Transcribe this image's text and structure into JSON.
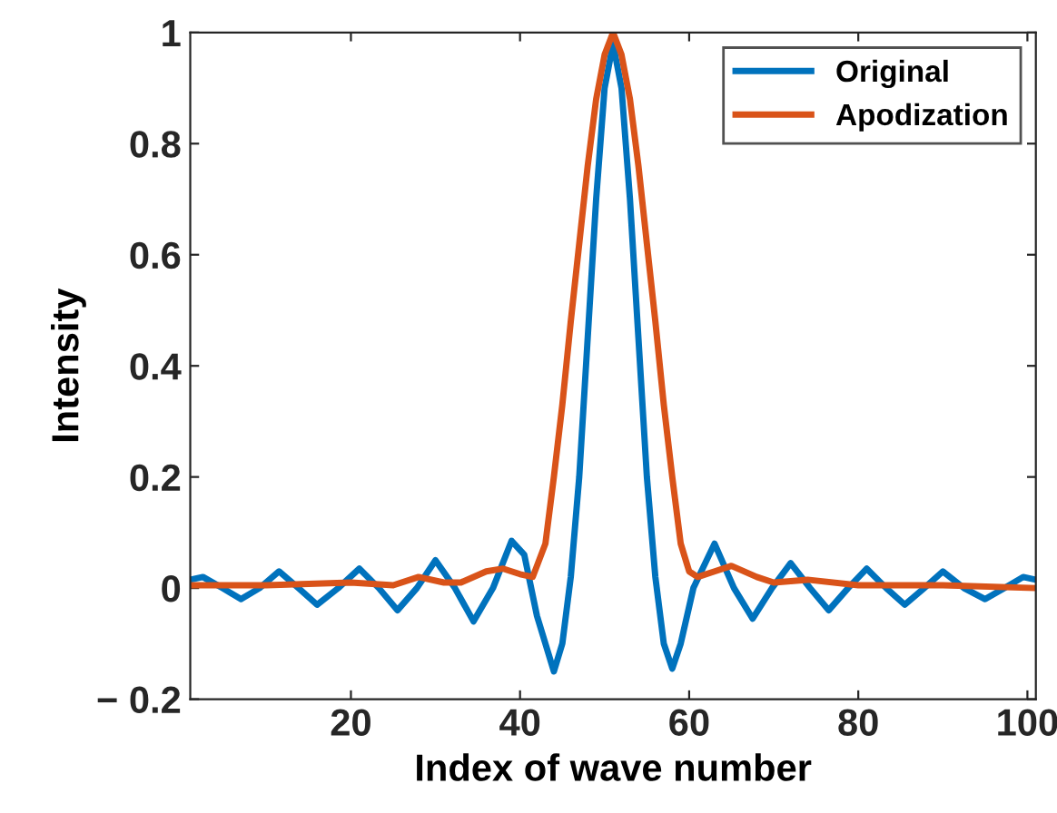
{
  "chart_data": {
    "type": "line",
    "xlabel": "Index of wave number",
    "ylabel": "Intensity",
    "xlim": [
      1,
      101
    ],
    "ylim": [
      -0.2,
      1
    ],
    "xticks": [
      20,
      40,
      60,
      80,
      100
    ],
    "yticks": [
      {
        "value": -0.2,
        "label": "− 0.2"
      },
      0,
      0.2,
      0.4,
      0.6,
      0.8,
      1
    ],
    "grid": false,
    "legend": "top right",
    "line_style": "solid",
    "marker": "none",
    "series": [
      {
        "name": "Original",
        "color": "#0072bd",
        "x": [
          1,
          2.5,
          4.8,
          7,
          9.2,
          11.5,
          13.8,
          16,
          18.5,
          21,
          23.3,
          25.5,
          27.8,
          30,
          32.3,
          34.5,
          36.8,
          39,
          40.5,
          42,
          44,
          45,
          46,
          47,
          48,
          49,
          50,
          51,
          52,
          53,
          54,
          55,
          56,
          57,
          58,
          59,
          60.5,
          63,
          65.3,
          67.5,
          69.8,
          72,
          74.3,
          76.5,
          78.8,
          81,
          83.3,
          85.5,
          87.8,
          90,
          92.5,
          95,
          97.3,
          99.5,
          101
        ],
        "values": [
          0.015,
          0.02,
          0,
          -0.02,
          0,
          0.03,
          0,
          -0.03,
          0,
          0.035,
          0,
          -0.04,
          0,
          0.05,
          0,
          -0.06,
          0,
          0.085,
          0.06,
          -0.05,
          -0.15,
          -0.1,
          0.02,
          0.2,
          0.45,
          0.7,
          0.9,
          0.98,
          0.9,
          0.7,
          0.45,
          0.2,
          0.02,
          -0.1,
          -0.145,
          -0.1,
          0,
          0.08,
          0,
          -0.055,
          0,
          0.045,
          0,
          -0.04,
          0,
          0.035,
          0,
          -0.03,
          0,
          0.03,
          0,
          -0.02,
          0,
          0.02,
          0.015
        ]
      },
      {
        "name": "Apodization",
        "color": "#d95319",
        "x": [
          1,
          10,
          20,
          25,
          28,
          31,
          33,
          36,
          38,
          40,
          41.5,
          43,
          44,
          45,
          46,
          47,
          48,
          49,
          50,
          51,
          52,
          53,
          54,
          55,
          56,
          57,
          58,
          59,
          60,
          61,
          63,
          65,
          68,
          70,
          74,
          80,
          90,
          101
        ],
        "values": [
          0.005,
          0.005,
          0.01,
          0.005,
          0.02,
          0.01,
          0.01,
          0.03,
          0.035,
          0.025,
          0.02,
          0.08,
          0.2,
          0.33,
          0.48,
          0.62,
          0.76,
          0.88,
          0.96,
          1.0,
          0.96,
          0.88,
          0.76,
          0.62,
          0.48,
          0.33,
          0.2,
          0.08,
          0.03,
          0.02,
          0.03,
          0.04,
          0.02,
          0.01,
          0.015,
          0.005,
          0.005,
          0
        ]
      }
    ]
  }
}
